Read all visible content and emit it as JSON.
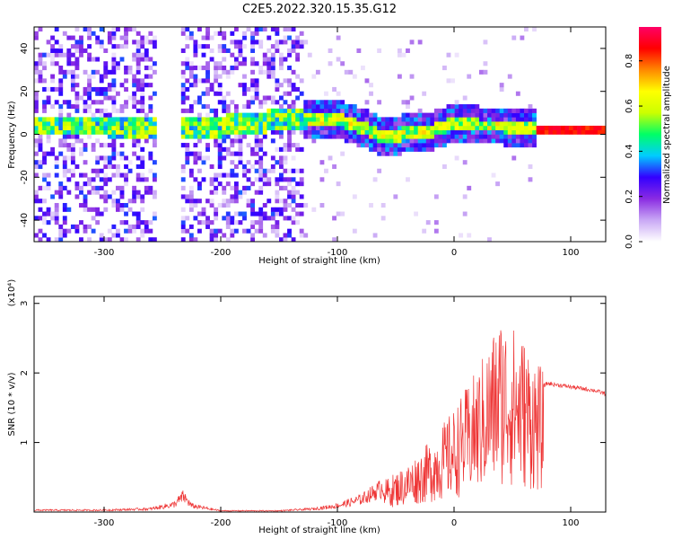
{
  "title": "C2E5.2022.320.15.35.G12",
  "colors": {
    "snr_line": "#ee3333",
    "colormap": [
      "#ffffff",
      "#c9a8f5",
      "#8a2be2",
      "#3300ff",
      "#00ccff",
      "#00ff66",
      "#ccff00",
      "#ffff00",
      "#ff8800",
      "#ff0000",
      "#ff0066"
    ]
  },
  "chart_data": [
    {
      "type": "heatmap",
      "xlabel": "Height of straight line (km)",
      "ylabel": "Frequency (Hz)",
      "xlim": [
        -360,
        130
      ],
      "ylim": [
        -50,
        50
      ],
      "xticks": [
        -300,
        -200,
        -100,
        0,
        100
      ],
      "yticks": [
        -40,
        -20,
        0,
        20,
        40
      ],
      "colorbar": {
        "label": "Normalized spectral amplitude",
        "range": [
          0,
          0.95
        ],
        "ticks": [
          0.0,
          0.2,
          0.4,
          0.6,
          0.8
        ]
      },
      "ridge": {
        "description_points_x": [
          -350,
          -300,
          -250,
          -215,
          -125,
          -100,
          -80,
          -60,
          -40,
          -20,
          0,
          20,
          40,
          60,
          70,
          130
        ],
        "description_points_y": [
          3,
          3,
          2,
          2,
          7,
          6,
          2,
          -3,
          0,
          1,
          4,
          3,
          3,
          2,
          1,
          1
        ]
      },
      "noise_regions_x": [
        [
          -360,
          -258
        ],
        [
          -237,
          -130
        ]
      ],
      "grid": false
    },
    {
      "type": "line",
      "xlabel": "Height of straight line (km)",
      "ylabel": "SNR (10 * v/v)",
      "scale_note": "(x10⁴)",
      "xlim": [
        -360,
        130
      ],
      "ylim": [
        0,
        3.1
      ],
      "xticks": [
        -300,
        -200,
        -100,
        0,
        100
      ],
      "yticks": [
        1,
        2,
        3
      ],
      "series": [
        {
          "x": [
            -360,
            -300,
            -260,
            -240,
            -232,
            -225,
            -200,
            -150,
            -120,
            -100,
            -80,
            -60,
            -40,
            -20,
            0,
            20,
            40,
            60,
            75,
            80,
            100,
            120,
            130
          ],
          "y": [
            0.03,
            0.03,
            0.05,
            0.12,
            0.25,
            0.1,
            0.02,
            0.02,
            0.05,
            0.1,
            0.2,
            0.4,
            0.6,
            0.9,
            1.3,
            1.8,
            2.5,
            2.2,
            1.8,
            1.85,
            1.8,
            1.75,
            1.7
          ]
        }
      ],
      "grid": false
    }
  ]
}
